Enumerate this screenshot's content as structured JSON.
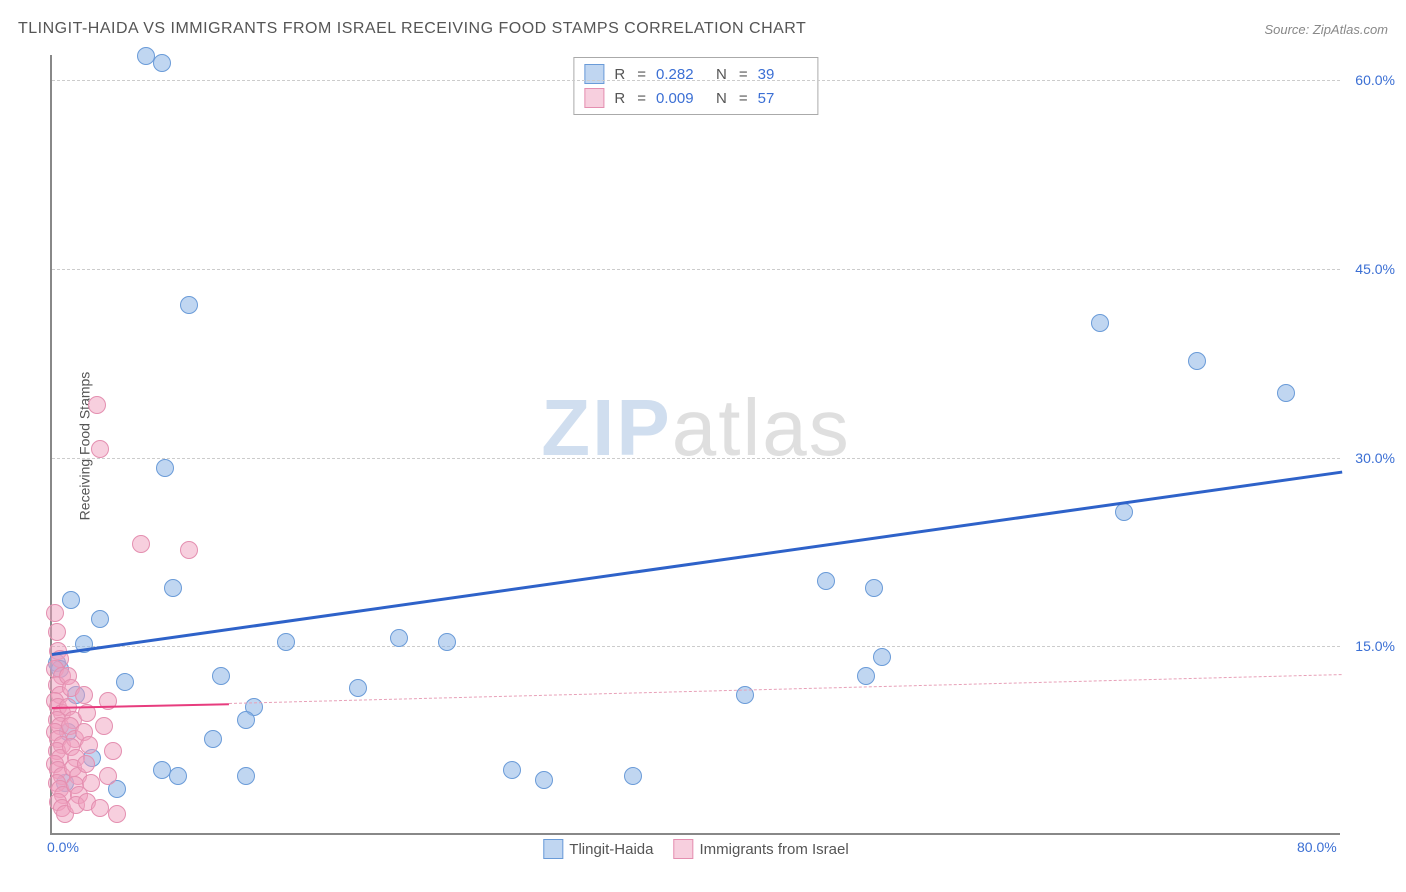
{
  "title": "TLINGIT-HAIDA VS IMMIGRANTS FROM ISRAEL RECEIVING FOOD STAMPS CORRELATION CHART",
  "source": "Source: ZipAtlas.com",
  "y_axis_label": "Receiving Food Stamps",
  "watermark": {
    "part1": "ZIP",
    "part2": "atlas"
  },
  "chart": {
    "type": "scatter",
    "background_color": "#ffffff",
    "grid_color": "#cccccc",
    "axis_color": "#888888",
    "tick_label_color": "#3b6fd4",
    "tick_fontsize": 14,
    "title_fontsize": 16,
    "title_color": "#555555",
    "xlim": [
      0,
      80
    ],
    "ylim": [
      0,
      62
    ],
    "x_ticks": [
      {
        "value": 0,
        "label": "0.0%"
      },
      {
        "value": 80,
        "label": "80.0%"
      }
    ],
    "y_ticks": [
      {
        "value": 15,
        "label": "15.0%"
      },
      {
        "value": 30,
        "label": "30.0%"
      },
      {
        "value": 45,
        "label": "45.0%"
      },
      {
        "value": 60,
        "label": "60.0%"
      }
    ],
    "series": [
      {
        "name": "Tlingit-Haida",
        "marker_color_fill": "rgba(140,180,230,0.55)",
        "marker_color_stroke": "#6a9bd8",
        "marker_radius": 9,
        "R": "0.282",
        "N": "39",
        "trend": {
          "x1": 0,
          "y1": 14.5,
          "x2": 80,
          "y2": 29,
          "color": "#2e62c9",
          "width": 3,
          "dash": "solid"
        },
        "points": [
          [
            5.8,
            61.8
          ],
          [
            6.8,
            61.2
          ],
          [
            0.3,
            13.5
          ],
          [
            1.2,
            18.5
          ],
          [
            0.5,
            13.0
          ],
          [
            1.0,
            8.0
          ],
          [
            8.5,
            42.0
          ],
          [
            7.0,
            29.0
          ],
          [
            7.5,
            19.5
          ],
          [
            4.5,
            12.0
          ],
          [
            10.5,
            12.5
          ],
          [
            12.5,
            10.0
          ],
          [
            14.5,
            15.2
          ],
          [
            12.0,
            9.0
          ],
          [
            10.0,
            7.5
          ],
          [
            6.8,
            5.0
          ],
          [
            7.8,
            4.5
          ],
          [
            12.0,
            4.5
          ],
          [
            19.0,
            11.5
          ],
          [
            21.5,
            15.5
          ],
          [
            24.5,
            15.2
          ],
          [
            28.5,
            5.0
          ],
          [
            30.5,
            4.2
          ],
          [
            36.0,
            4.5
          ],
          [
            43.0,
            11.0
          ],
          [
            48.0,
            20.0
          ],
          [
            50.5,
            12.5
          ],
          [
            51.5,
            14.0
          ],
          [
            51.0,
            19.5
          ],
          [
            65.0,
            40.5
          ],
          [
            66.5,
            25.5
          ],
          [
            71.0,
            37.5
          ],
          [
            76.5,
            35.0
          ],
          [
            3.0,
            17.0
          ],
          [
            2.0,
            15.0
          ],
          [
            1.5,
            11.0
          ],
          [
            2.5,
            6.0
          ],
          [
            4.0,
            3.5
          ],
          [
            0.8,
            4.0
          ]
        ]
      },
      {
        "name": "Immigrants from Israel",
        "marker_color_fill": "rgba(240,160,190,0.5)",
        "marker_color_stroke": "#e48fb0",
        "marker_radius": 9,
        "R": "0.009",
        "N": "57",
        "trend_solid": {
          "x1": 0,
          "y1": 10.2,
          "x2": 11,
          "y2": 10.5,
          "color": "#e73c7e",
          "width": 2.5,
          "dash": "solid"
        },
        "trend_dash": {
          "x1": 11,
          "y1": 10.5,
          "x2": 80,
          "y2": 12.8,
          "color": "#e8a0b8",
          "width": 1.5,
          "dash": "dashed"
        },
        "points": [
          [
            0.2,
            17.5
          ],
          [
            0.3,
            16.0
          ],
          [
            0.4,
            14.5
          ],
          [
            0.5,
            13.8
          ],
          [
            0.2,
            13.0
          ],
          [
            0.6,
            12.5
          ],
          [
            0.3,
            11.8
          ],
          [
            0.5,
            11.0
          ],
          [
            0.2,
            10.5
          ],
          [
            0.4,
            10.0
          ],
          [
            0.6,
            9.5
          ],
          [
            0.3,
            9.0
          ],
          [
            0.5,
            8.5
          ],
          [
            0.2,
            8.0
          ],
          [
            0.4,
            7.5
          ],
          [
            0.6,
            7.0
          ],
          [
            0.3,
            6.5
          ],
          [
            0.5,
            6.0
          ],
          [
            0.2,
            5.5
          ],
          [
            0.4,
            5.0
          ],
          [
            0.6,
            4.5
          ],
          [
            0.3,
            4.0
          ],
          [
            0.5,
            3.5
          ],
          [
            0.7,
            3.0
          ],
          [
            0.4,
            2.5
          ],
          [
            0.6,
            2.0
          ],
          [
            0.8,
            1.5
          ],
          [
            1.0,
            12.5
          ],
          [
            1.2,
            11.5
          ],
          [
            1.0,
            10.0
          ],
          [
            1.3,
            9.0
          ],
          [
            1.1,
            8.5
          ],
          [
            1.4,
            7.5
          ],
          [
            1.2,
            6.8
          ],
          [
            1.5,
            6.0
          ],
          [
            1.3,
            5.2
          ],
          [
            1.6,
            4.5
          ],
          [
            1.4,
            3.8
          ],
          [
            1.7,
            3.0
          ],
          [
            1.5,
            2.2
          ],
          [
            2.0,
            11.0
          ],
          [
            2.2,
            9.5
          ],
          [
            2.0,
            8.0
          ],
          [
            2.3,
            7.0
          ],
          [
            2.1,
            5.5
          ],
          [
            2.4,
            4.0
          ],
          [
            2.2,
            2.5
          ],
          [
            2.8,
            34.0
          ],
          [
            3.0,
            30.5
          ],
          [
            3.5,
            10.5
          ],
          [
            3.2,
            8.5
          ],
          [
            3.8,
            6.5
          ],
          [
            3.5,
            4.5
          ],
          [
            3.0,
            2.0
          ],
          [
            5.5,
            23.0
          ],
          [
            8.5,
            22.5
          ],
          [
            4.0,
            1.5
          ]
        ]
      }
    ]
  },
  "legend_top": {
    "r_label": "R",
    "n_label": "N",
    "eq": "="
  },
  "legend_bottom": {
    "items": [
      "Tlingit-Haida",
      "Immigrants from Israel"
    ]
  }
}
